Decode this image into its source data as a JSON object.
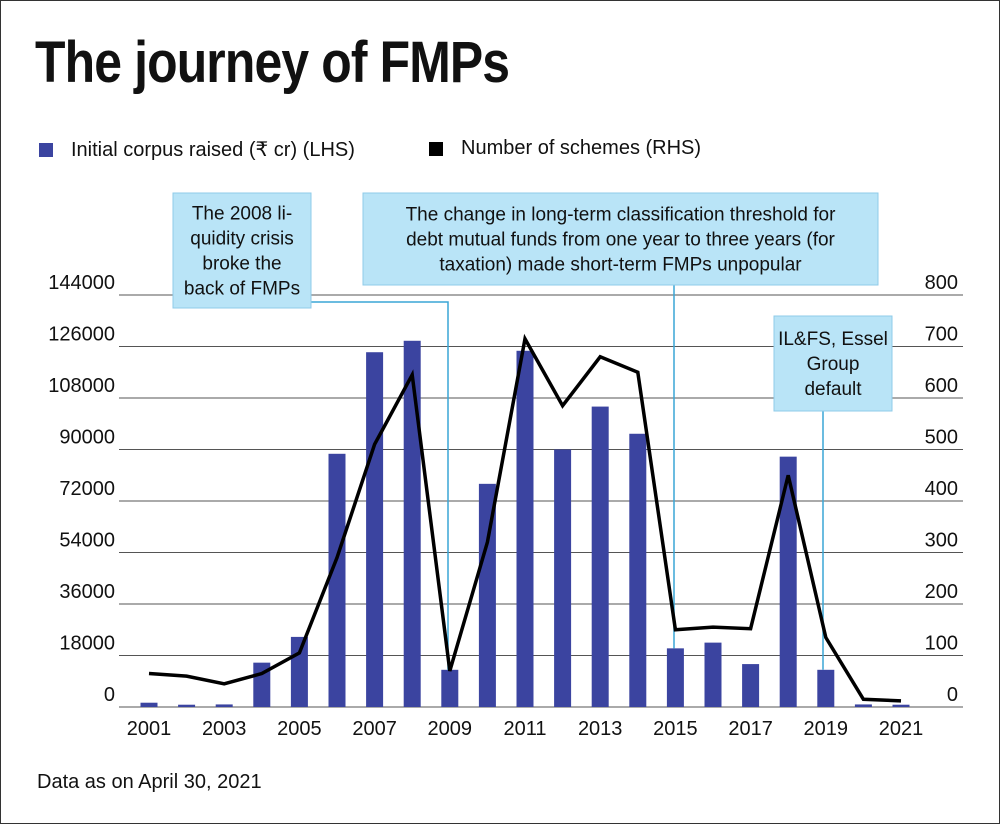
{
  "title": "The journey of FMPs",
  "footnote": "Data as on April 30, 2021",
  "colors": {
    "bar": "#3b44a0",
    "line": "#000000",
    "annotation_bg": "#b9e4f7",
    "annotation_line": "#3aa6d6",
    "grid": "#555555"
  },
  "chart_data": {
    "type": "bar",
    "categories": [
      "2001",
      "2002",
      "2003",
      "2004",
      "2005",
      "2006",
      "2007",
      "2008",
      "2009",
      "2010",
      "2011",
      "2012",
      "2013",
      "2014",
      "2015",
      "2016",
      "2017",
      "2018",
      "2019",
      "2020",
      "2021"
    ],
    "x_tick_labels": [
      "2001",
      "2003",
      "2005",
      "2007",
      "2009",
      "2011",
      "2013",
      "2015",
      "2017",
      "2019",
      "2021"
    ],
    "legend_placement": "top-left",
    "grid": true,
    "series": [
      {
        "name": "Initial corpus raised (₹ cr) (LHS)",
        "type": "bar",
        "axis": "left",
        "values": [
          1500,
          800,
          900,
          15500,
          24500,
          88500,
          124000,
          128000,
          13000,
          78000,
          124500,
          90000,
          105000,
          95500,
          20500,
          22500,
          15000,
          87500,
          13000,
          900,
          800
        ]
      },
      {
        "name": "Number of schemes (RHS)",
        "type": "line",
        "axis": "right",
        "values": [
          65,
          60,
          45,
          65,
          105,
          290,
          510,
          645,
          70,
          320,
          715,
          585,
          680,
          650,
          150,
          155,
          152,
          450,
          135,
          15,
          12
        ]
      }
    ],
    "left_axis": {
      "ylim": [
        0,
        144000
      ],
      "ticks": [
        0,
        18000,
        36000,
        54000,
        72000,
        90000,
        108000,
        126000,
        144000
      ],
      "tick_labels": [
        "0",
        "18000",
        "36000",
        "54000",
        "72000",
        "90000",
        "108000",
        "126000",
        "144000"
      ]
    },
    "right_axis": {
      "ylim": [
        0,
        800
      ],
      "ticks": [
        0,
        100,
        200,
        300,
        400,
        500,
        600,
        700,
        800
      ],
      "tick_labels": [
        "0",
        "100",
        "200",
        "300",
        "400",
        "500",
        "600",
        "700",
        "800"
      ]
    },
    "annotations": [
      {
        "lines": [
          "The 2008 li-",
          "quidity crisis",
          "broke the",
          "back of FMPs"
        ],
        "target_category": "2009"
      },
      {
        "lines": [
          "The change in long-term classification threshold for",
          "debt mutual funds from one year to three years (for",
          "taxation) made short-term FMPs unpopular"
        ],
        "target_category": "2015"
      },
      {
        "lines": [
          "IL&FS, Essel",
          "Group",
          "default"
        ],
        "target_category": "2019"
      }
    ]
  }
}
